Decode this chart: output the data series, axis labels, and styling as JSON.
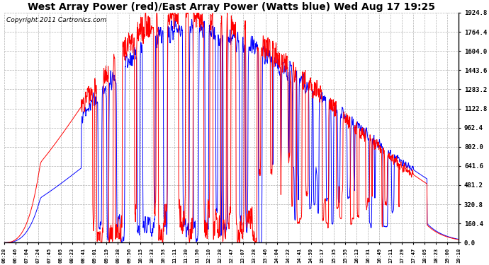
{
  "title": "West Array Power (red)/East Array Power (Watts blue) Wed Aug 17 19:25",
  "copyright": "Copyright 2011 Cartronics.com",
  "ylim": [
    0.0,
    1924.8
  ],
  "yticks": [
    0.0,
    160.4,
    320.8,
    481.2,
    641.6,
    802.0,
    962.4,
    1122.8,
    1283.2,
    1443.6,
    1604.0,
    1764.4,
    1924.8
  ],
  "ytick_labels": [
    "0.0",
    "160.4",
    "320.8",
    "481.2",
    "641.6",
    "802.0",
    "962.4",
    "1122.8",
    "1283.2",
    "1443.6",
    "1604.0",
    "1764.4",
    "1924.8"
  ],
  "xtick_labels": [
    "06:28",
    "06:46",
    "07:04",
    "07:24",
    "07:45",
    "08:05",
    "08:23",
    "08:41",
    "09:01",
    "09:19",
    "09:38",
    "09:56",
    "10:15",
    "10:33",
    "10:53",
    "11:11",
    "11:30",
    "11:50",
    "12:10",
    "12:28",
    "12:47",
    "13:07",
    "13:28",
    "13:46",
    "14:04",
    "14:22",
    "14:41",
    "14:59",
    "15:17",
    "15:35",
    "15:55",
    "16:13",
    "16:31",
    "16:49",
    "17:11",
    "17:29",
    "17:47",
    "18:05",
    "18:23",
    "19:00",
    "19:18"
  ],
  "red_color": "#ff0000",
  "blue_color": "#0000ff",
  "bg_color": "#ffffff",
  "grid_color": "#b0b0b0",
  "title_fontsize": 10,
  "copyright_fontsize": 6.5
}
